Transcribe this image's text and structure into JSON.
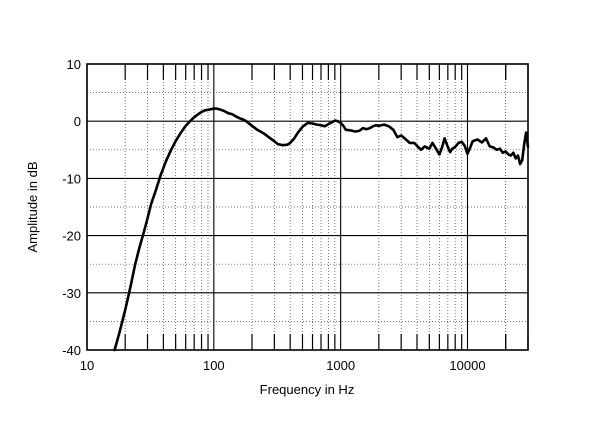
{
  "chart_data": {
    "type": "line",
    "title": "",
    "xlabel": "Frequency in Hz",
    "ylabel": "Amplitude in dB",
    "xscale": "log",
    "xlim": [
      10,
      30000
    ],
    "ylim": [
      -40,
      10
    ],
    "grid": true,
    "x_tick_labels": [
      "10",
      "100",
      "1000",
      "10000"
    ],
    "x_tick_values": [
      10,
      100,
      1000,
      10000
    ],
    "y_tick_labels": [
      "10",
      "0",
      "-10",
      "-20",
      "-30",
      "-40"
    ],
    "y_tick_values": [
      10,
      0,
      -10,
      -20,
      -30,
      -40
    ],
    "line_color": "#000000",
    "series": [
      {
        "x": [
          16.5,
          18,
          20,
          22,
          24,
          26,
          28,
          30,
          32,
          35,
          38,
          42,
          46,
          50,
          55,
          60,
          65,
          70,
          75,
          80,
          85,
          90,
          95,
          100,
          105,
          110,
          120,
          130,
          140,
          150,
          160,
          170,
          180,
          200,
          220,
          250,
          280,
          300,
          320,
          350,
          380,
          400,
          430,
          460,
          500,
          550,
          600,
          650,
          700,
          750,
          800,
          850,
          900,
          950,
          1000,
          1050,
          1100,
          1200,
          1300,
          1400,
          1500,
          1600,
          1700,
          1800,
          1900,
          2000,
          2200,
          2400,
          2600,
          2800,
          3000,
          3200,
          3500,
          3800,
          4000,
          4300,
          4600,
          5000,
          5300,
          5600,
          6000,
          6300,
          6600,
          7000,
          7300,
          7600,
          8000,
          8500,
          9000,
          9500,
          10000,
          10500,
          11000,
          12000,
          13000,
          14000,
          15000,
          16000,
          17000,
          18000,
          19000,
          20000,
          21000,
          22000,
          23000,
          24000,
          25000,
          26000,
          27000,
          28000,
          29000,
          30000
        ],
        "values": [
          -40,
          -37,
          -33,
          -29,
          -25,
          -22,
          -19.5,
          -17,
          -14.5,
          -12,
          -9.5,
          -7,
          -5,
          -3.5,
          -2,
          -0.8,
          0,
          0.7,
          1.2,
          1.6,
          1.9,
          2.0,
          2.1,
          2.2,
          2.2,
          2.1,
          1.8,
          1.4,
          1.2,
          0.8,
          0.5,
          0.3,
          0,
          -0.8,
          -1.5,
          -2.2,
          -3.0,
          -3.5,
          -4.0,
          -4.2,
          -4.1,
          -3.8,
          -3.0,
          -2.0,
          -1.0,
          -0.3,
          -0.4,
          -0.6,
          -0.7,
          -0.9,
          -0.5,
          -0.2,
          0.1,
          0,
          -0.3,
          -0.8,
          -1.5,
          -1.6,
          -1.8,
          -1.7,
          -1.2,
          -1.4,
          -1.2,
          -0.9,
          -0.7,
          -0.8,
          -0.6,
          -0.9,
          -1.5,
          -2.8,
          -2.5,
          -3.0,
          -3.8,
          -3.8,
          -4.3,
          -5.0,
          -4.4,
          -4.8,
          -3.8,
          -4.7,
          -5.8,
          -4.6,
          -3.0,
          -4.5,
          -5.4,
          -4.8,
          -4.5,
          -3.8,
          -3.6,
          -4.3,
          -5.7,
          -4.6,
          -3.5,
          -3.2,
          -3.7,
          -3.0,
          -4.4,
          -4.6,
          -5.0,
          -4.8,
          -5.5,
          -5.3,
          -5.8,
          -6.0,
          -5.5,
          -6.5,
          -6.0,
          -7.5,
          -6.8,
          -4.0,
          -2.0,
          -4.5
        ]
      }
    ]
  }
}
